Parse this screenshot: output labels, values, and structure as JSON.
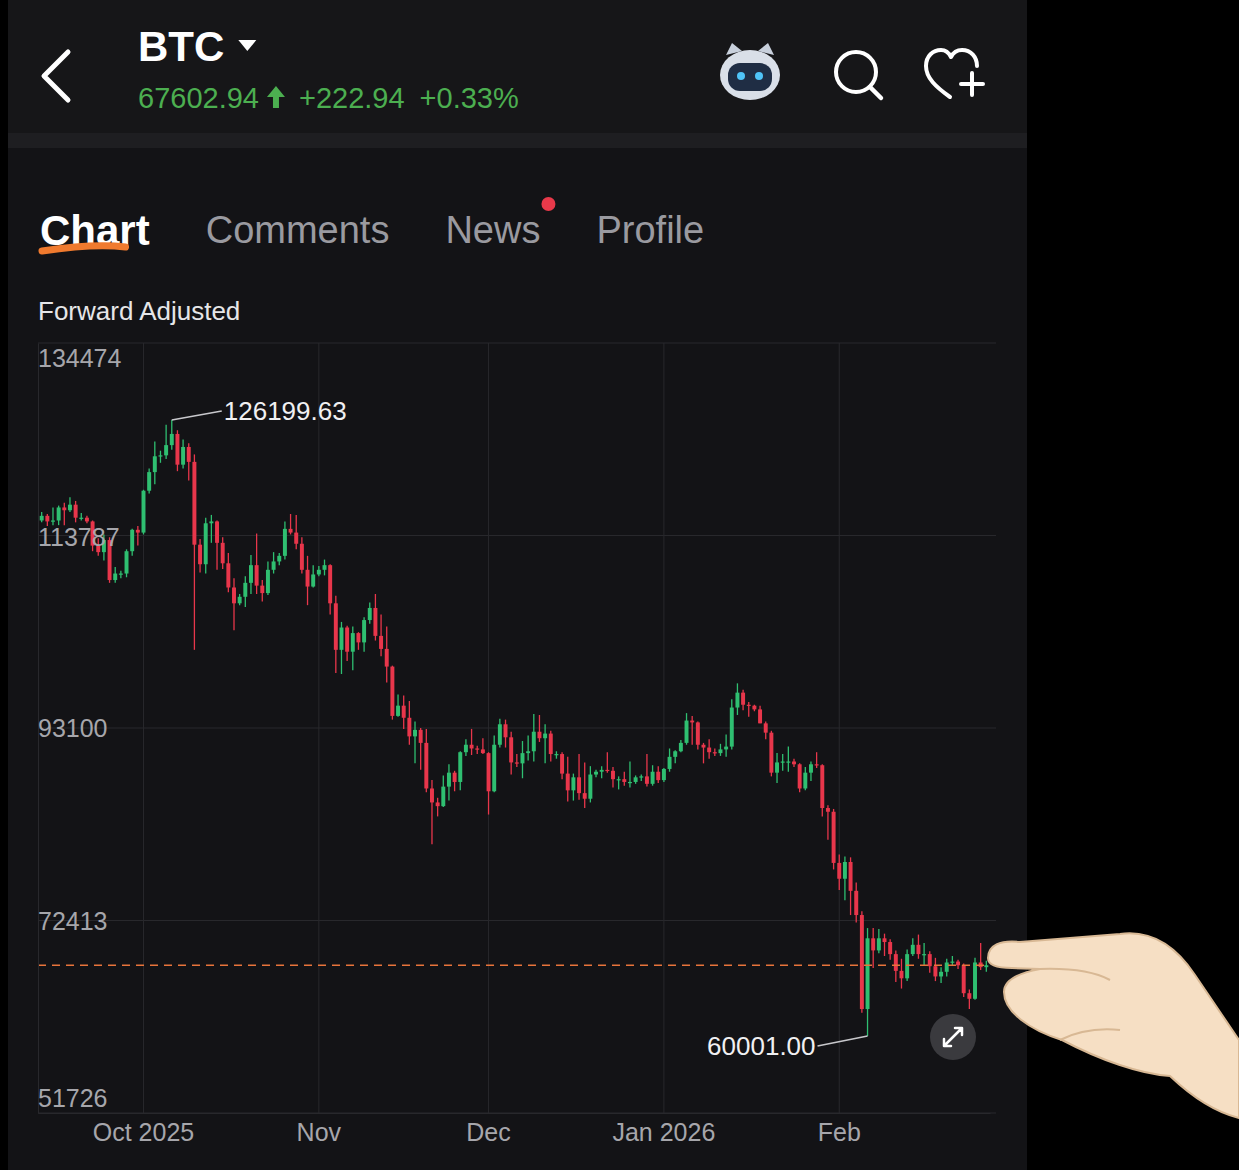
{
  "header": {
    "symbol": "BTC",
    "price": "67602.94",
    "change": "+222.94",
    "change_percent": "+0.33%"
  },
  "tabs": [
    "Chart",
    "Comments",
    "News",
    "Profile"
  ],
  "active_tab": 0,
  "unread_tab": 2,
  "chart_data": {
    "type": "candlestick",
    "subtitle": "Forward Adjusted",
    "color": {
      "up": "#2fbf71",
      "down": "#e8364b"
    },
    "grid": true,
    "annotations": {
      "high": "126199.63",
      "low": "60001.00"
    },
    "ylim": [
      51726,
      134474
    ],
    "yticks": [
      134474,
      113787,
      93100,
      72413,
      51726
    ],
    "categories": [
      null,
      null,
      null,
      null,
      null,
      null,
      null,
      null,
      null,
      null,
      null,
      null,
      null,
      null,
      null,
      null,
      null,
      null,
      "Oct 2025",
      null,
      null,
      null,
      null,
      null,
      null,
      null,
      null,
      null,
      null,
      null,
      null,
      null,
      null,
      null,
      null,
      null,
      null,
      null,
      null,
      null,
      null,
      null,
      null,
      null,
      null,
      null,
      null,
      null,
      null,
      "Nov",
      null,
      null,
      null,
      null,
      null,
      null,
      null,
      null,
      null,
      null,
      null,
      null,
      null,
      null,
      null,
      null,
      null,
      null,
      null,
      null,
      null,
      null,
      null,
      null,
      null,
      null,
      null,
      null,
      null,
      "Dec",
      null,
      null,
      null,
      null,
      null,
      null,
      null,
      null,
      null,
      null,
      null,
      null,
      null,
      null,
      null,
      null,
      null,
      null,
      null,
      null,
      null,
      null,
      null,
      null,
      null,
      null,
      null,
      null,
      null,
      null,
      "Jan 2026",
      null,
      null,
      null,
      null,
      null,
      null,
      null,
      null,
      null,
      null,
      null,
      null,
      null,
      null,
      null,
      null,
      null,
      null,
      null,
      null,
      null,
      null,
      null,
      null,
      null,
      null,
      null,
      null,
      null,
      null,
      "Feb",
      null,
      null,
      null,
      null,
      null,
      null,
      null,
      null,
      null,
      null,
      null,
      null,
      null,
      null,
      null,
      null,
      null,
      null,
      null,
      null,
      null,
      null,
      null,
      null,
      null,
      null
    ],
    "open": [
      115400,
      115900,
      115300,
      115400,
      116800,
      116500,
      117100,
      115700,
      115700,
      115300,
      112700,
      112000,
      113300,
      109000,
      109700,
      109700,
      112100,
      114400,
      114100,
      118600,
      120600,
      122300,
      122400,
      123500,
      124700,
      121400,
      123300,
      121700,
      112800,
      110700,
      115100,
      115300,
      113000,
      110800,
      108200,
      106500,
      107200,
      108700,
      110600,
      108400,
      107600,
      110100,
      111000,
      111600,
      114500,
      114100,
      112900,
      110100,
      108300,
      109600,
      110100,
      110600,
      106500,
      101500,
      103900,
      101300,
      103300,
      102300,
      104700,
      106000,
      103000,
      101600,
      99700,
      94400,
      95500,
      94200,
      92200,
      92900,
      91500,
      86600,
      85100,
      84700,
      86800,
      88300,
      87300,
      90500,
      91300,
      90900,
      90800,
      90400,
      86300,
      91300,
      93500,
      92100,
      89400,
      89300,
      90400,
      90600,
      92700,
      92000,
      92500,
      90300,
      90300,
      88200,
      86400,
      87800,
      86100,
      85500,
      88100,
      88400,
      88600,
      88500,
      87600,
      87600,
      87300,
      87300,
      87800,
      87900,
      87100,
      88400,
      87500,
      88700,
      90000,
      90600,
      91500,
      93900,
      93700,
      91300,
      91000,
      90500,
      90400,
      90800,
      91100,
      95300,
      96900,
      95600,
      95500,
      95100,
      93600,
      92600,
      88300,
      89400,
      89500,
      89500,
      89200,
      86600,
      88300,
      89200,
      89100,
      84500,
      84100,
      78600,
      76900,
      78700,
      75600,
      73000,
      62900,
      70500,
      69200,
      70500,
      70100,
      68800,
      67000,
      66200,
      68800,
      69800,
      68800,
      68800,
      67500,
      66400,
      66900,
      67900,
      68000,
      67600,
      64600,
      64000,
      67900,
      67400
    ],
    "high": [
      116300,
      116100,
      116800,
      117000,
      117300,
      117900,
      117500,
      116200,
      115900,
      115400,
      113500,
      113900,
      113600,
      110400,
      110000,
      112300,
      114500,
      114800,
      118700,
      121000,
      123900,
      122900,
      125700,
      126199.63,
      125100,
      124100,
      123700,
      122500,
      113400,
      115700,
      116000,
      115400,
      113600,
      111900,
      109200,
      107500,
      109400,
      111700,
      114000,
      109000,
      111000,
      112000,
      111900,
      115300,
      116100,
      116000,
      113600,
      111600,
      110600,
      110500,
      111200,
      110700,
      107300,
      104500,
      104100,
      104000,
      103400,
      105000,
      106600,
      107500,
      105300,
      104000,
      99800,
      96700,
      96600,
      96000,
      93800,
      93100,
      93000,
      87500,
      85600,
      88000,
      89200,
      88500,
      90600,
      91900,
      93000,
      91200,
      92000,
      90500,
      92300,
      94100,
      94000,
      92700,
      90300,
      91700,
      92300,
      94600,
      94500,
      93500,
      92800,
      90600,
      90500,
      90000,
      88200,
      90300,
      89400,
      89000,
      88600,
      89000,
      90500,
      88900,
      87900,
      88400,
      89500,
      88000,
      88100,
      90300,
      89100,
      89000,
      88800,
      90900,
      90700,
      91800,
      94700,
      94400,
      93800,
      91500,
      91900,
      90900,
      91400,
      92400,
      96200,
      97900,
      97200,
      95900,
      95600,
      95500,
      93800,
      92800,
      90400,
      90300,
      91100,
      89800,
      89300,
      88900,
      89500,
      90500,
      89200,
      84800,
      84400,
      79500,
      79300,
      79200,
      76500,
      73400,
      71600,
      71600,
      71500,
      71000,
      70400,
      69200,
      68300,
      69300,
      70500,
      70900,
      70000,
      69100,
      68400,
      67400,
      68300,
      68600,
      68200,
      67800,
      65000,
      68400,
      70000,
      68100
    ],
    "low": [
      115200,
      114800,
      114900,
      114900,
      114900,
      116300,
      115200,
      115400,
      115100,
      112100,
      111600,
      111100,
      108700,
      108700,
      109200,
      109300,
      111600,
      112700,
      113900,
      118300,
      119300,
      121600,
      122000,
      123000,
      120700,
      121000,
      119700,
      101500,
      109800,
      109700,
      113000,
      110100,
      110200,
      107700,
      103600,
      106300,
      106100,
      107500,
      107500,
      106700,
      107400,
      109700,
      110600,
      111200,
      113900,
      112300,
      109700,
      106300,
      108200,
      109400,
      109500,
      105300,
      99000,
      98900,
      100300,
      99300,
      101500,
      101300,
      104300,
      102500,
      100800,
      98000,
      94000,
      94300,
      93000,
      91300,
      89300,
      88600,
      86200,
      80600,
      83600,
      84600,
      85300,
      86300,
      86400,
      90100,
      90200,
      90300,
      90300,
      83800,
      86200,
      91000,
      91000,
      88100,
      88900,
      87700,
      89600,
      89500,
      91600,
      89300,
      89500,
      89800,
      87600,
      85200,
      85300,
      85400,
      84500,
      85100,
      87800,
      87700,
      88300,
      86700,
      86500,
      86900,
      86700,
      87100,
      87400,
      86800,
      86900,
      87200,
      87300,
      88400,
      89300,
      90500,
      91300,
      91300,
      90800,
      89300,
      89800,
      90100,
      90100,
      90000,
      90800,
      94500,
      95000,
      94300,
      94900,
      93600,
      91900,
      87900,
      87200,
      88500,
      88400,
      88900,
      86200,
      86400,
      87400,
      88800,
      83600,
      81100,
      77900,
      75700,
      74600,
      73000,
      72200,
      62500,
      60001,
      67300,
      68900,
      68600,
      68200,
      65800,
      65100,
      65900,
      68600,
      68300,
      67600,
      66800,
      65900,
      65700,
      66400,
      67600,
      67200,
      64200,
      62900,
      63900,
      67100,
      66900
    ],
    "close": [
      115900,
      115300,
      115400,
      116800,
      116500,
      117100,
      115700,
      115700,
      115300,
      112700,
      112000,
      113300,
      109000,
      109700,
      109700,
      112100,
      114400,
      114100,
      118600,
      120600,
      122300,
      122400,
      123500,
      124700,
      121400,
      123300,
      121700,
      112800,
      110700,
      115100,
      115300,
      113000,
      110800,
      108200,
      106500,
      107200,
      108700,
      110600,
      108400,
      107600,
      110100,
      111000,
      111600,
      114500,
      114100,
      112900,
      110100,
      108300,
      109600,
      110100,
      110600,
      106500,
      101500,
      103900,
      101300,
      103300,
      102300,
      104700,
      106000,
      103000,
      101600,
      99700,
      94400,
      95500,
      94200,
      92200,
      92900,
      91500,
      86600,
      85100,
      84700,
      86800,
      88300,
      87300,
      90500,
      91300,
      90900,
      90800,
      90400,
      86300,
      91300,
      93500,
      92100,
      89400,
      89300,
      90400,
      90600,
      92700,
      92000,
      92500,
      90300,
      90300,
      88200,
      86400,
      87800,
      86100,
      85500,
      88100,
      88400,
      88600,
      88500,
      87600,
      87600,
      87300,
      87300,
      87800,
      87900,
      87100,
      88400,
      87500,
      88700,
      90000,
      90600,
      91500,
      93900,
      93700,
      91300,
      91000,
      90500,
      90400,
      90800,
      91100,
      95300,
      96900,
      95600,
      95500,
      95100,
      93600,
      92600,
      88300,
      89400,
      89500,
      89500,
      89200,
      86600,
      88300,
      89200,
      89100,
      84500,
      84100,
      78600,
      76900,
      78700,
      75600,
      73000,
      62900,
      70500,
      69200,
      70500,
      70100,
      68800,
      67000,
      66200,
      68800,
      69800,
      68800,
      68800,
      67500,
      66400,
      66900,
      67900,
      68000,
      67600,
      64600,
      64000,
      67900,
      67400,
      67602.94
    ]
  }
}
